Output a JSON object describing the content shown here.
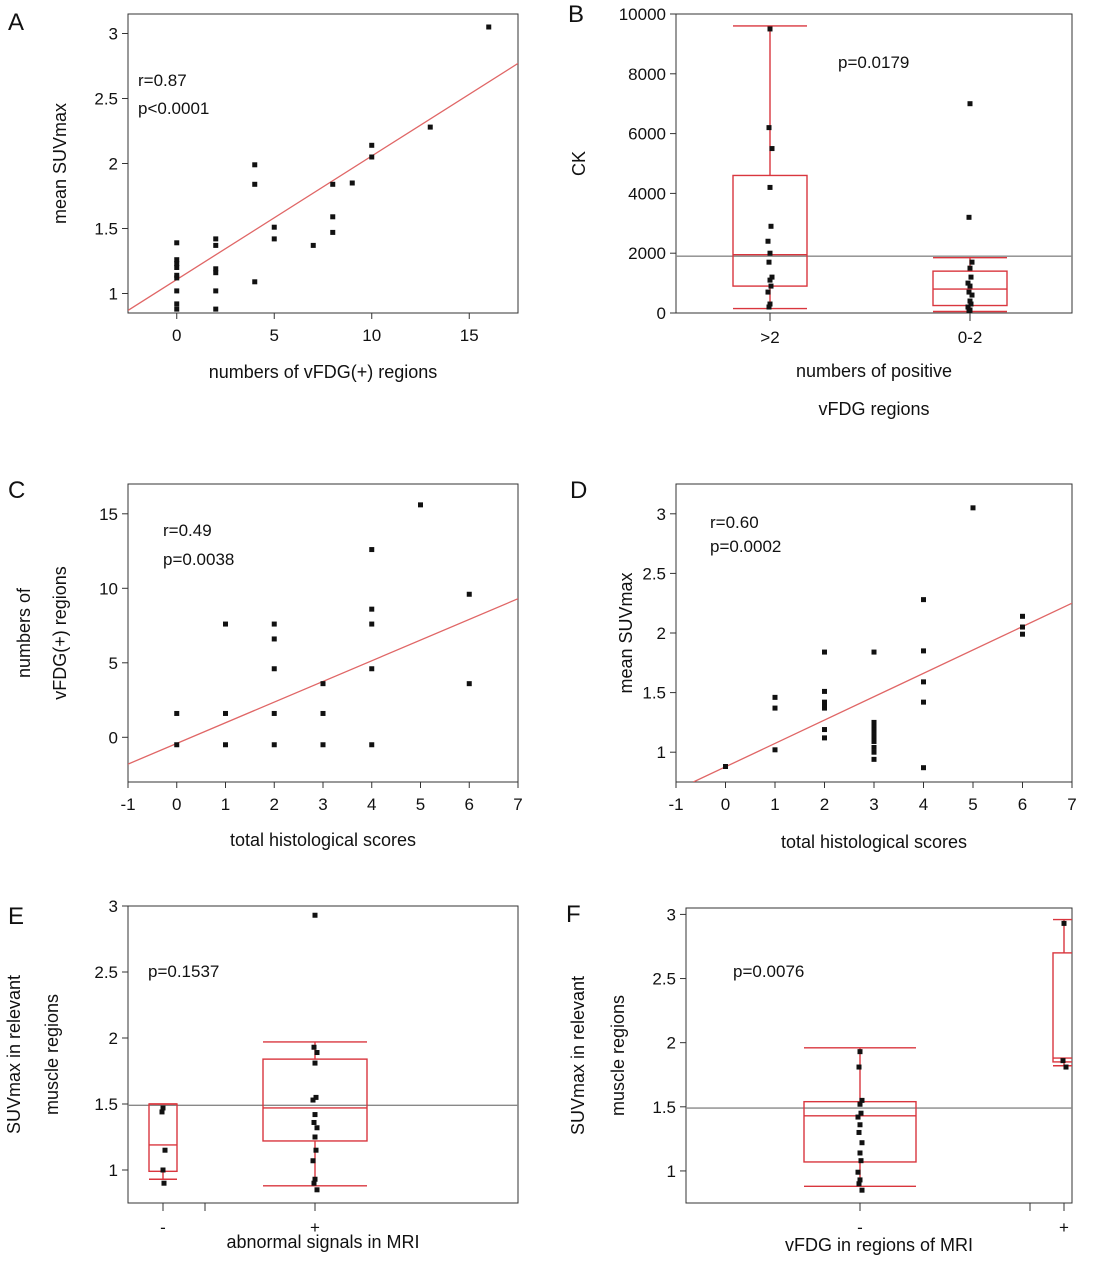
{
  "chart_data": [
    {
      "panel": "A",
      "type": "scatter",
      "xlabel": "numbers of vFDG(+) regions",
      "ylabel": "mean SUVmax",
      "xlim": [
        -2.5,
        17.5
      ],
      "ylim": [
        0.85,
        3.15
      ],
      "xticks": [
        0,
        5,
        10,
        15
      ],
      "yticks": [
        1,
        1.5,
        2,
        2.5,
        3
      ],
      "annotations": [
        "r=0.87",
        "p<0.0001"
      ],
      "fit": {
        "x": [
          -2.5,
          17.5
        ],
        "y": [
          0.87,
          2.77
        ]
      },
      "points": [
        [
          0,
          0.88
        ],
        [
          0,
          0.92
        ],
        [
          0,
          1.02
        ],
        [
          0,
          1.12
        ],
        [
          0,
          1.14
        ],
        [
          0,
          1.2
        ],
        [
          0,
          1.23
        ],
        [
          0,
          1.26
        ],
        [
          0,
          1.39
        ],
        [
          2,
          0.88
        ],
        [
          2,
          1.02
        ],
        [
          2,
          1.16
        ],
        [
          2,
          1.19
        ],
        [
          2,
          1.37
        ],
        [
          2,
          1.42
        ],
        [
          4,
          1.09
        ],
        [
          4,
          1.84
        ],
        [
          4,
          1.99
        ],
        [
          5,
          1.42
        ],
        [
          5,
          1.51
        ],
        [
          7,
          1.37
        ],
        [
          8,
          1.47
        ],
        [
          8,
          1.59
        ],
        [
          8,
          1.84
        ],
        [
          9,
          1.85
        ],
        [
          10,
          2.05
        ],
        [
          10,
          2.14
        ],
        [
          13,
          2.28
        ],
        [
          16,
          3.05
        ]
      ]
    },
    {
      "panel": "B",
      "type": "box",
      "xlabel": [
        "numbers of positive",
        "vFDG regions"
      ],
      "ylabel": "CK",
      "ylim": [
        0,
        10000
      ],
      "yticks": [
        0,
        2000,
        4000,
        6000,
        8000,
        10000
      ],
      "categories": [
        ">2",
        "0-2"
      ],
      "annotations": [
        "p=0.0179"
      ],
      "reference_line": 1900,
      "groups": [
        {
          "name": ">2",
          "min": 150,
          "q1": 900,
          "median": 1950,
          "q3": 4600,
          "max": 9600,
          "points": [
            9500,
            6200,
            5500,
            4200,
            2900,
            2400,
            2000,
            1700,
            1200,
            1100,
            900,
            700,
            300,
            200
          ]
        },
        {
          "name": "0-2",
          "min": 50,
          "q1": 250,
          "median": 800,
          "q3": 1400,
          "max": 1850,
          "points": [
            7000,
            3200,
            1700,
            1500,
            1200,
            1000,
            900,
            700,
            600,
            400,
            300,
            200,
            100,
            50
          ]
        }
      ]
    },
    {
      "panel": "C",
      "type": "scatter",
      "xlabel": "total histological scores",
      "ylabel": [
        "numbers of",
        "vFDG(+) regions"
      ],
      "xlim": [
        -1,
        7
      ],
      "ylim": [
        -3,
        17
      ],
      "xticks": [
        -1,
        0,
        1,
        2,
        3,
        4,
        5,
        6,
        7
      ],
      "yticks": [
        0,
        5,
        10,
        15
      ],
      "annotations": [
        "r=0.49",
        "p=0.0038"
      ],
      "fit": {
        "x": [
          -1,
          7
        ],
        "y": [
          -1.8,
          9.3
        ]
      },
      "points": [
        [
          0,
          -0.5
        ],
        [
          0,
          1.6
        ],
        [
          1,
          -0.5
        ],
        [
          1,
          1.6
        ],
        [
          1,
          7.6
        ],
        [
          2,
          -0.5
        ],
        [
          2,
          1.6
        ],
        [
          2,
          4.6
        ],
        [
          2,
          6.6
        ],
        [
          2,
          7.6
        ],
        [
          3,
          -0.5
        ],
        [
          3,
          1.6
        ],
        [
          3,
          3.6
        ],
        [
          4,
          -0.5
        ],
        [
          4,
          4.6
        ],
        [
          4,
          7.6
        ],
        [
          4,
          8.6
        ],
        [
          4,
          12.6
        ],
        [
          5,
          15.6
        ],
        [
          6,
          3.6
        ],
        [
          6,
          9.6
        ]
      ]
    },
    {
      "panel": "D",
      "type": "scatter",
      "xlabel": "total histological scores",
      "ylabel": "mean SUVmax",
      "xlim": [
        -1,
        7
      ],
      "ylim": [
        0.75,
        3.25
      ],
      "xticks": [
        -1,
        0,
        1,
        2,
        3,
        4,
        5,
        6,
        7
      ],
      "yticks": [
        1,
        1.5,
        2,
        2.5,
        3
      ],
      "annotations": [
        "r=0.60",
        "p=0.0002"
      ],
      "fit": {
        "x": [
          -0.65,
          7
        ],
        "y": [
          0.75,
          2.25
        ]
      },
      "points": [
        [
          0,
          0.88
        ],
        [
          1,
          1.02
        ],
        [
          1,
          1.37
        ],
        [
          1,
          1.46
        ],
        [
          2,
          1.12
        ],
        [
          2,
          1.19
        ],
        [
          2,
          1.37
        ],
        [
          2,
          1.4
        ],
        [
          2,
          1.42
        ],
        [
          2,
          1.51
        ],
        [
          2,
          1.84
        ],
        [
          3,
          0.94
        ],
        [
          3,
          1.0
        ],
        [
          3,
          1.04
        ],
        [
          3,
          1.09
        ],
        [
          3,
          1.12
        ],
        [
          3,
          1.14
        ],
        [
          3,
          1.18
        ],
        [
          3,
          1.2
        ],
        [
          3,
          1.23
        ],
        [
          3,
          1.25
        ],
        [
          3,
          1.84
        ],
        [
          4,
          0.87
        ],
        [
          4,
          1.42
        ],
        [
          4,
          1.59
        ],
        [
          4,
          1.85
        ],
        [
          4,
          2.28
        ],
        [
          5,
          3.05
        ],
        [
          6,
          1.99
        ],
        [
          6,
          2.05
        ],
        [
          6,
          2.14
        ]
      ]
    },
    {
      "panel": "E",
      "type": "box",
      "xlabel": "abnormal signals in MRI",
      "ylabel": [
        "SUVmax in relevant",
        "muscle regions"
      ],
      "ylim": [
        0.75,
        3.0
      ],
      "yticks": [
        1,
        1.5,
        2,
        2.5,
        3
      ],
      "categories": [
        "-",
        "+"
      ],
      "annotations": [
        "p=0.1537"
      ],
      "reference_line": 1.49,
      "groups": [
        {
          "name": "-",
          "min": 0.93,
          "q1": 0.99,
          "median": 1.19,
          "q3": 1.5,
          "max": 1.5,
          "points": [
            1.47,
            1.44,
            1.15,
            1.0,
            0.9
          ]
        },
        {
          "name": "+",
          "min": 0.88,
          "q1": 1.22,
          "median": 1.47,
          "q3": 1.84,
          "max": 1.97,
          "points": [
            2.93,
            1.93,
            1.89,
            1.81,
            1.55,
            1.53,
            1.42,
            1.36,
            1.32,
            1.25,
            1.15,
            1.07,
            0.93,
            0.9,
            0.85
          ]
        }
      ]
    },
    {
      "panel": "F",
      "type": "box",
      "xlabel": "vFDG in regions of MRI",
      "ylabel": [
        "SUVmax in relevant",
        "muscle regions"
      ],
      "ylim": [
        0.75,
        3.05
      ],
      "yticks": [
        1,
        1.5,
        2,
        2.5,
        3
      ],
      "categories": [
        "-",
        "+"
      ],
      "annotations": [
        "p=0.0076"
      ],
      "reference_line": 1.49,
      "groups": [
        {
          "name": "-",
          "min": 0.88,
          "q1": 1.07,
          "median": 1.43,
          "q3": 1.54,
          "max": 1.96,
          "points": [
            1.93,
            1.81,
            1.55,
            1.52,
            1.45,
            1.42,
            1.36,
            1.3,
            1.22,
            1.14,
            1.08,
            0.99,
            0.93,
            0.9,
            0.85
          ]
        },
        {
          "name": "+",
          "min": 1.82,
          "q1": 1.85,
          "median": 1.88,
          "q3": 2.7,
          "max": 2.96,
          "points": [
            2.93,
            1.86,
            1.81
          ]
        }
      ]
    }
  ]
}
